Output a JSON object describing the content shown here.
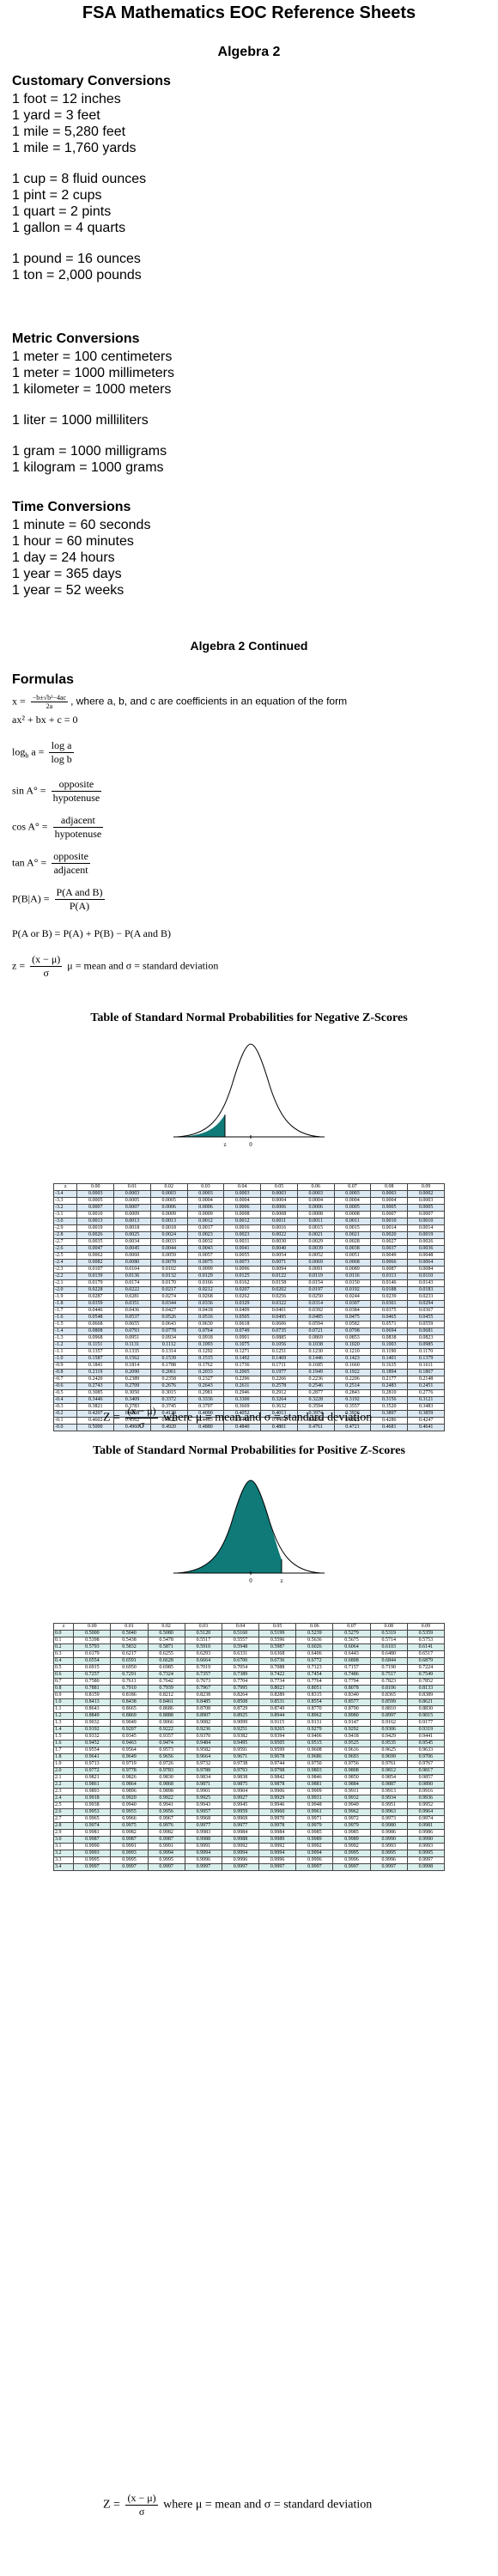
{
  "title": "FSA Mathematics EOC Reference Sheets",
  "section1_title": "Algebra 2",
  "customary": {
    "heading": "Customary Conversions",
    "groups": [
      [
        "1 foot = 12 inches",
        "1 yard = 3 feet",
        "1 mile = 5,280 feet",
        "1 mile = 1,760 yards"
      ],
      [
        "1 cup = 8 fluid ounces",
        "1 pint = 2 cups",
        "1 quart = 2 pints",
        "1 gallon = 4 quarts"
      ],
      [
        "1 pound = 16 ounces",
        "1 ton = 2,000 pounds"
      ]
    ]
  },
  "metric": {
    "heading": "Metric Conversions",
    "groups": [
      [
        "1 meter = 100 centimeters",
        "1 meter = 1000 millimeters",
        "1 kilometer = 1000 meters"
      ],
      [
        "1 liter = 1000 milliliters"
      ],
      [
        "1 gram = 1000 milligrams",
        "1 kilogram = 1000 grams"
      ]
    ]
  },
  "time": {
    "heading": "Time Conversions",
    "lines": [
      "1 minute = 60 seconds",
      "1 hour = 60 minutes",
      "1 day = 24 hours",
      "1 year = 365 days",
      "1 year = 52 weeks"
    ]
  },
  "section2_title": "Algebra 2 Continued",
  "formulas_heading": "Formulas",
  "formulas": {
    "quad_lhs": "x =",
    "quad_num": "−b±√b²−4ac",
    "quad_den": "2a",
    "quad_rest": ", where a, b, and c are coefficients in an equation of the form",
    "quad_form": "ax² + bx + c = 0",
    "log_lhs": "log",
    "log_sub": "b",
    "log_var": " a = ",
    "log_num": "log a",
    "log_den": "log b",
    "sin_lhs": "sin A° =",
    "sin_num": "opposite",
    "sin_den": "hypotenuse",
    "cos_lhs": "cos A° =",
    "cos_num": "adjacent",
    "cos_den": "hypotenuse",
    "tan_lhs": "tan A° =",
    "tan_num": "opposite",
    "tan_den": "adjacent",
    "cond_lhs": "P(B|A) =",
    "cond_num": "P(A and B)",
    "cond_den": "P(A)",
    "union": "P(A or B) = P(A) + P(B) − P(A and B)",
    "z_lhs": "z =",
    "z_num": "(x − μ)",
    "z_den": "σ",
    "z_rest": "μ = mean and σ = standard deviation"
  },
  "neg_table": {
    "title": "Table of Standard Normal Probabilities for Negative Z-Scores",
    "axis_labels": [
      "z",
      "0"
    ],
    "fill_color": "#0f7a78",
    "header": [
      "z",
      "0.00",
      "0.01",
      "0.02",
      "0.03",
      "0.04",
      "0.05",
      "0.06",
      "0.07",
      "0.08",
      "0.09"
    ],
    "rows": [
      [
        "-3.4",
        "0.0003",
        "0.0003",
        "0.0003",
        "0.0003",
        "0.0003",
        "0.0003",
        "0.0003",
        "0.0003",
        "0.0003",
        "0.0002"
      ],
      [
        "-3.3",
        "0.0005",
        "0.0005",
        "0.0005",
        "0.0004",
        "0.0004",
        "0.0004",
        "0.0004",
        "0.0004",
        "0.0004",
        "0.0003"
      ],
      [
        "-3.2",
        "0.0007",
        "0.0007",
        "0.0006",
        "0.0006",
        "0.0006",
        "0.0006",
        "0.0006",
        "0.0005",
        "0.0005",
        "0.0005"
      ],
      [
        "-3.1",
        "0.0010",
        "0.0009",
        "0.0009",
        "0.0009",
        "0.0008",
        "0.0008",
        "0.0008",
        "0.0008",
        "0.0007",
        "0.0007"
      ],
      [
        "-3.0",
        "0.0013",
        "0.0013",
        "0.0013",
        "0.0012",
        "0.0012",
        "0.0011",
        "0.0011",
        "0.0011",
        "0.0010",
        "0.0010"
      ],
      [
        "-2.9",
        "0.0019",
        "0.0018",
        "0.0018",
        "0.0017",
        "0.0016",
        "0.0016",
        "0.0015",
        "0.0015",
        "0.0014",
        "0.0014"
      ],
      [
        "-2.8",
        "0.0026",
        "0.0025",
        "0.0024",
        "0.0023",
        "0.0023",
        "0.0022",
        "0.0021",
        "0.0021",
        "0.0020",
        "0.0019"
      ],
      [
        "-2.7",
        "0.0035",
        "0.0034",
        "0.0033",
        "0.0032",
        "0.0031",
        "0.0030",
        "0.0029",
        "0.0028",
        "0.0027",
        "0.0026"
      ],
      [
        "-2.6",
        "0.0047",
        "0.0045",
        "0.0044",
        "0.0043",
        "0.0041",
        "0.0040",
        "0.0039",
        "0.0038",
        "0.0037",
        "0.0036"
      ],
      [
        "-2.5",
        "0.0062",
        "0.0060",
        "0.0059",
        "0.0057",
        "0.0055",
        "0.0054",
        "0.0052",
        "0.0051",
        "0.0049",
        "0.0048"
      ],
      [
        "-2.4",
        "0.0082",
        "0.0080",
        "0.0078",
        "0.0075",
        "0.0073",
        "0.0071",
        "0.0069",
        "0.0068",
        "0.0066",
        "0.0064"
      ],
      [
        "-2.3",
        "0.0107",
        "0.0104",
        "0.0102",
        "0.0099",
        "0.0096",
        "0.0094",
        "0.0091",
        "0.0089",
        "0.0087",
        "0.0084"
      ],
      [
        "-2.2",
        "0.0139",
        "0.0136",
        "0.0132",
        "0.0129",
        "0.0125",
        "0.0122",
        "0.0119",
        "0.0116",
        "0.0113",
        "0.0110"
      ],
      [
        "-2.1",
        "0.0179",
        "0.0174",
        "0.0170",
        "0.0166",
        "0.0162",
        "0.0158",
        "0.0154",
        "0.0150",
        "0.0146",
        "0.0143"
      ],
      [
        "-2.0",
        "0.0228",
        "0.0222",
        "0.0217",
        "0.0212",
        "0.0207",
        "0.0202",
        "0.0197",
        "0.0192",
        "0.0188",
        "0.0183"
      ],
      [
        "-1.9",
        "0.0287",
        "0.0281",
        "0.0274",
        "0.0268",
        "0.0262",
        "0.0256",
        "0.0250",
        "0.0244",
        "0.0239",
        "0.0233"
      ],
      [
        "-1.8",
        "0.0359",
        "0.0351",
        "0.0344",
        "0.0336",
        "0.0329",
        "0.0322",
        "0.0314",
        "0.0307",
        "0.0301",
        "0.0294"
      ],
      [
        "-1.7",
        "0.0446",
        "0.0436",
        "0.0427",
        "0.0418",
        "0.0409",
        "0.0401",
        "0.0392",
        "0.0384",
        "0.0375",
        "0.0367"
      ],
      [
        "-1.6",
        "0.0548",
        "0.0537",
        "0.0526",
        "0.0516",
        "0.0505",
        "0.0495",
        "0.0485",
        "0.0475",
        "0.0465",
        "0.0455"
      ],
      [
        "-1.5",
        "0.0668",
        "0.0655",
        "0.0643",
        "0.0630",
        "0.0618",
        "0.0606",
        "0.0594",
        "0.0582",
        "0.0571",
        "0.0559"
      ],
      [
        "-1.4",
        "0.0808",
        "0.0793",
        "0.0778",
        "0.0764",
        "0.0749",
        "0.0735",
        "0.0721",
        "0.0708",
        "0.0694",
        "0.0681"
      ],
      [
        "-1.3",
        "0.0968",
        "0.0951",
        "0.0934",
        "0.0918",
        "0.0901",
        "0.0885",
        "0.0869",
        "0.0853",
        "0.0838",
        "0.0823"
      ],
      [
        "-1.2",
        "0.1151",
        "0.1131",
        "0.1112",
        "0.1093",
        "0.1075",
        "0.1056",
        "0.1038",
        "0.1020",
        "0.1003",
        "0.0985"
      ],
      [
        "-1.1",
        "0.1357",
        "0.1335",
        "0.1314",
        "0.1292",
        "0.1271",
        "0.1251",
        "0.1230",
        "0.1210",
        "0.1190",
        "0.1170"
      ],
      [
        "-1.0",
        "0.1587",
        "0.1562",
        "0.1539",
        "0.1515",
        "0.1492",
        "0.1469",
        "0.1446",
        "0.1423",
        "0.1401",
        "0.1379"
      ],
      [
        "-0.9",
        "0.1841",
        "0.1814",
        "0.1788",
        "0.1762",
        "0.1736",
        "0.1711",
        "0.1685",
        "0.1660",
        "0.1635",
        "0.1611"
      ],
      [
        "-0.8",
        "0.2119",
        "0.2090",
        "0.2061",
        "0.2033",
        "0.2005",
        "0.1977",
        "0.1949",
        "0.1922",
        "0.1894",
        "0.1867"
      ],
      [
        "-0.7",
        "0.2420",
        "0.2389",
        "0.2358",
        "0.2327",
        "0.2296",
        "0.2266",
        "0.2236",
        "0.2206",
        "0.2177",
        "0.2148"
      ],
      [
        "-0.6",
        "0.2743",
        "0.2709",
        "0.2676",
        "0.2643",
        "0.2611",
        "0.2578",
        "0.2546",
        "0.2514",
        "0.2483",
        "0.2451"
      ],
      [
        "-0.5",
        "0.3085",
        "0.3050",
        "0.3015",
        "0.2981",
        "0.2946",
        "0.2912",
        "0.2877",
        "0.2843",
        "0.2810",
        "0.2776"
      ],
      [
        "-0.4",
        "0.3446",
        "0.3409",
        "0.3372",
        "0.3336",
        "0.3300",
        "0.3264",
        "0.3228",
        "0.3192",
        "0.3156",
        "0.3121"
      ],
      [
        "-0.3",
        "0.3821",
        "0.3783",
        "0.3745",
        "0.3707",
        "0.3669",
        "0.3632",
        "0.3594",
        "0.3557",
        "0.3520",
        "0.3483"
      ],
      [
        "-0.2",
        "0.4207",
        "0.4168",
        "0.4129",
        "0.4090",
        "0.4052",
        "0.4013",
        "0.3974",
        "0.3936",
        "0.3897",
        "0.3859"
      ],
      [
        "-0.1",
        "0.4602",
        "0.4562",
        "0.4522",
        "0.4483",
        "0.4443",
        "0.4404",
        "0.4364",
        "0.4325",
        "0.4286",
        "0.4247"
      ],
      [
        "-0.0",
        "0.5000",
        "0.4960",
        "0.4920",
        "0.4880",
        "0.4840",
        "0.4801",
        "0.4761",
        "0.4721",
        "0.4681",
        "0.4641"
      ]
    ],
    "footer_lhs": "Z =",
    "footer_num": "(x − μ)",
    "footer_den": "σ",
    "footer_rest": "where μ = mean and σ = standard deviation"
  },
  "pos_table": {
    "title": "Table of Standard Normal Probabilities for Positive Z-Scores",
    "axis_labels": [
      "0",
      "z"
    ],
    "fill_color": "#0f7a78",
    "header": [
      "z",
      "0.00",
      "0.01",
      "0.02",
      "0.03",
      "0.04",
      "0.05",
      "0.06",
      "0.07",
      "0.08",
      "0.09"
    ],
    "rows": [
      [
        "0.0",
        "0.5000",
        "0.5040",
        "0.5080",
        "0.5120",
        "0.5160",
        "0.5199",
        "0.5239",
        "0.5279",
        "0.5319",
        "0.5359"
      ],
      [
        "0.1",
        "0.5398",
        "0.5438",
        "0.5478",
        "0.5517",
        "0.5557",
        "0.5596",
        "0.5636",
        "0.5675",
        "0.5714",
        "0.5753"
      ],
      [
        "0.2",
        "0.5793",
        "0.5832",
        "0.5871",
        "0.5910",
        "0.5948",
        "0.5987",
        "0.6026",
        "0.6064",
        "0.6103",
        "0.6141"
      ],
      [
        "0.3",
        "0.6179",
        "0.6217",
        "0.6255",
        "0.6293",
        "0.6331",
        "0.6368",
        "0.6406",
        "0.6443",
        "0.6480",
        "0.6517"
      ],
      [
        "0.4",
        "0.6554",
        "0.6591",
        "0.6628",
        "0.6664",
        "0.6700",
        "0.6736",
        "0.6772",
        "0.6808",
        "0.6844",
        "0.6879"
      ],
      [
        "0.5",
        "0.6915",
        "0.6950",
        "0.6985",
        "0.7019",
        "0.7054",
        "0.7088",
        "0.7123",
        "0.7157",
        "0.7190",
        "0.7224"
      ],
      [
        "0.6",
        "0.7257",
        "0.7291",
        "0.7324",
        "0.7357",
        "0.7389",
        "0.7422",
        "0.7454",
        "0.7486",
        "0.7517",
        "0.7549"
      ],
      [
        "0.7",
        "0.7580",
        "0.7611",
        "0.7642",
        "0.7673",
        "0.7704",
        "0.7734",
        "0.7764",
        "0.7794",
        "0.7823",
        "0.7852"
      ],
      [
        "0.8",
        "0.7881",
        "0.7910",
        "0.7939",
        "0.7967",
        "0.7995",
        "0.8023",
        "0.8051",
        "0.8078",
        "0.8106",
        "0.8133"
      ],
      [
        "0.9",
        "0.8159",
        "0.8186",
        "0.8212",
        "0.8238",
        "0.8264",
        "0.8289",
        "0.8315",
        "0.8340",
        "0.8365",
        "0.8389"
      ],
      [
        "1.0",
        "0.8413",
        "0.8438",
        "0.8461",
        "0.8485",
        "0.8508",
        "0.8531",
        "0.8554",
        "0.8577",
        "0.8599",
        "0.8621"
      ],
      [
        "1.1",
        "0.8643",
        "0.8665",
        "0.8686",
        "0.8708",
        "0.8729",
        "0.8749",
        "0.8770",
        "0.8790",
        "0.8810",
        "0.8830"
      ],
      [
        "1.2",
        "0.8849",
        "0.8869",
        "0.8888",
        "0.8907",
        "0.8925",
        "0.8944",
        "0.8962",
        "0.8980",
        "0.8997",
        "0.9015"
      ],
      [
        "1.3",
        "0.9032",
        "0.9049",
        "0.9066",
        "0.9082",
        "0.9099",
        "0.9115",
        "0.9131",
        "0.9147",
        "0.9162",
        "0.9177"
      ],
      [
        "1.4",
        "0.9192",
        "0.9207",
        "0.9222",
        "0.9236",
        "0.9251",
        "0.9265",
        "0.9279",
        "0.9292",
        "0.9306",
        "0.9319"
      ],
      [
        "1.5",
        "0.9332",
        "0.9345",
        "0.9357",
        "0.9370",
        "0.9382",
        "0.9394",
        "0.9406",
        "0.9418",
        "0.9429",
        "0.9441"
      ],
      [
        "1.6",
        "0.9452",
        "0.9463",
        "0.9474",
        "0.9484",
        "0.9495",
        "0.9505",
        "0.9515",
        "0.9525",
        "0.9535",
        "0.9545"
      ],
      [
        "1.7",
        "0.9554",
        "0.9564",
        "0.9573",
        "0.9582",
        "0.9591",
        "0.9599",
        "0.9608",
        "0.9616",
        "0.9625",
        "0.9633"
      ],
      [
        "1.8",
        "0.9641",
        "0.9649",
        "0.9656",
        "0.9664",
        "0.9671",
        "0.9678",
        "0.9686",
        "0.9693",
        "0.9699",
        "0.9706"
      ],
      [
        "1.9",
        "0.9713",
        "0.9719",
        "0.9726",
        "0.9732",
        "0.9738",
        "0.9744",
        "0.9750",
        "0.9756",
        "0.9761",
        "0.9767"
      ],
      [
        "2.0",
        "0.9772",
        "0.9778",
        "0.9783",
        "0.9788",
        "0.9793",
        "0.9798",
        "0.9803",
        "0.9808",
        "0.9812",
        "0.9817"
      ],
      [
        "2.1",
        "0.9821",
        "0.9826",
        "0.9830",
        "0.9834",
        "0.9838",
        "0.9842",
        "0.9846",
        "0.9850",
        "0.9854",
        "0.9857"
      ],
      [
        "2.2",
        "0.9861",
        "0.9864",
        "0.9868",
        "0.9871",
        "0.9875",
        "0.9878",
        "0.9881",
        "0.9884",
        "0.9887",
        "0.9890"
      ],
      [
        "2.3",
        "0.9893",
        "0.9896",
        "0.9898",
        "0.9901",
        "0.9904",
        "0.9906",
        "0.9909",
        "0.9911",
        "0.9913",
        "0.9916"
      ],
      [
        "2.4",
        "0.9918",
        "0.9920",
        "0.9922",
        "0.9925",
        "0.9927",
        "0.9929",
        "0.9931",
        "0.9932",
        "0.9934",
        "0.9936"
      ],
      [
        "2.5",
        "0.9938",
        "0.9940",
        "0.9941",
        "0.9943",
        "0.9945",
        "0.9946",
        "0.9948",
        "0.9949",
        "0.9951",
        "0.9952"
      ],
      [
        "2.6",
        "0.9953",
        "0.9955",
        "0.9956",
        "0.9957",
        "0.9959",
        "0.9960",
        "0.9961",
        "0.9962",
        "0.9963",
        "0.9964"
      ],
      [
        "2.7",
        "0.9965",
        "0.9966",
        "0.9967",
        "0.9968",
        "0.9969",
        "0.9970",
        "0.9971",
        "0.9972",
        "0.9973",
        "0.9974"
      ],
      [
        "2.8",
        "0.9974",
        "0.9975",
        "0.9976",
        "0.9977",
        "0.9977",
        "0.9978",
        "0.9979",
        "0.9979",
        "0.9980",
        "0.9981"
      ],
      [
        "2.9",
        "0.9981",
        "0.9982",
        "0.9982",
        "0.9983",
        "0.9984",
        "0.9984",
        "0.9985",
        "0.9985",
        "0.9986",
        "0.9986"
      ],
      [
        "3.0",
        "0.9987",
        "0.9987",
        "0.9987",
        "0.9988",
        "0.9988",
        "0.9989",
        "0.9989",
        "0.9989",
        "0.9990",
        "0.9990"
      ],
      [
        "3.1",
        "0.9990",
        "0.9991",
        "0.9991",
        "0.9991",
        "0.9992",
        "0.9992",
        "0.9992",
        "0.9992",
        "0.9993",
        "0.9993"
      ],
      [
        "3.2",
        "0.9993",
        "0.9993",
        "0.9994",
        "0.9994",
        "0.9994",
        "0.9994",
        "0.9994",
        "0.9995",
        "0.9995",
        "0.9995"
      ],
      [
        "3.3",
        "0.9995",
        "0.9995",
        "0.9995",
        "0.9996",
        "0.9996",
        "0.9996",
        "0.9996",
        "0.9996",
        "0.9996",
        "0.9997"
      ],
      [
        "3.4",
        "0.9997",
        "0.9997",
        "0.9997",
        "0.9997",
        "0.9997",
        "0.9997",
        "0.9997",
        "0.9997",
        "0.9997",
        "0.9998"
      ]
    ],
    "footer_lhs": "Z =",
    "footer_num": "(x − μ)",
    "footer_den": "σ",
    "footer_rest": "where μ = mean and σ = standard deviation"
  }
}
